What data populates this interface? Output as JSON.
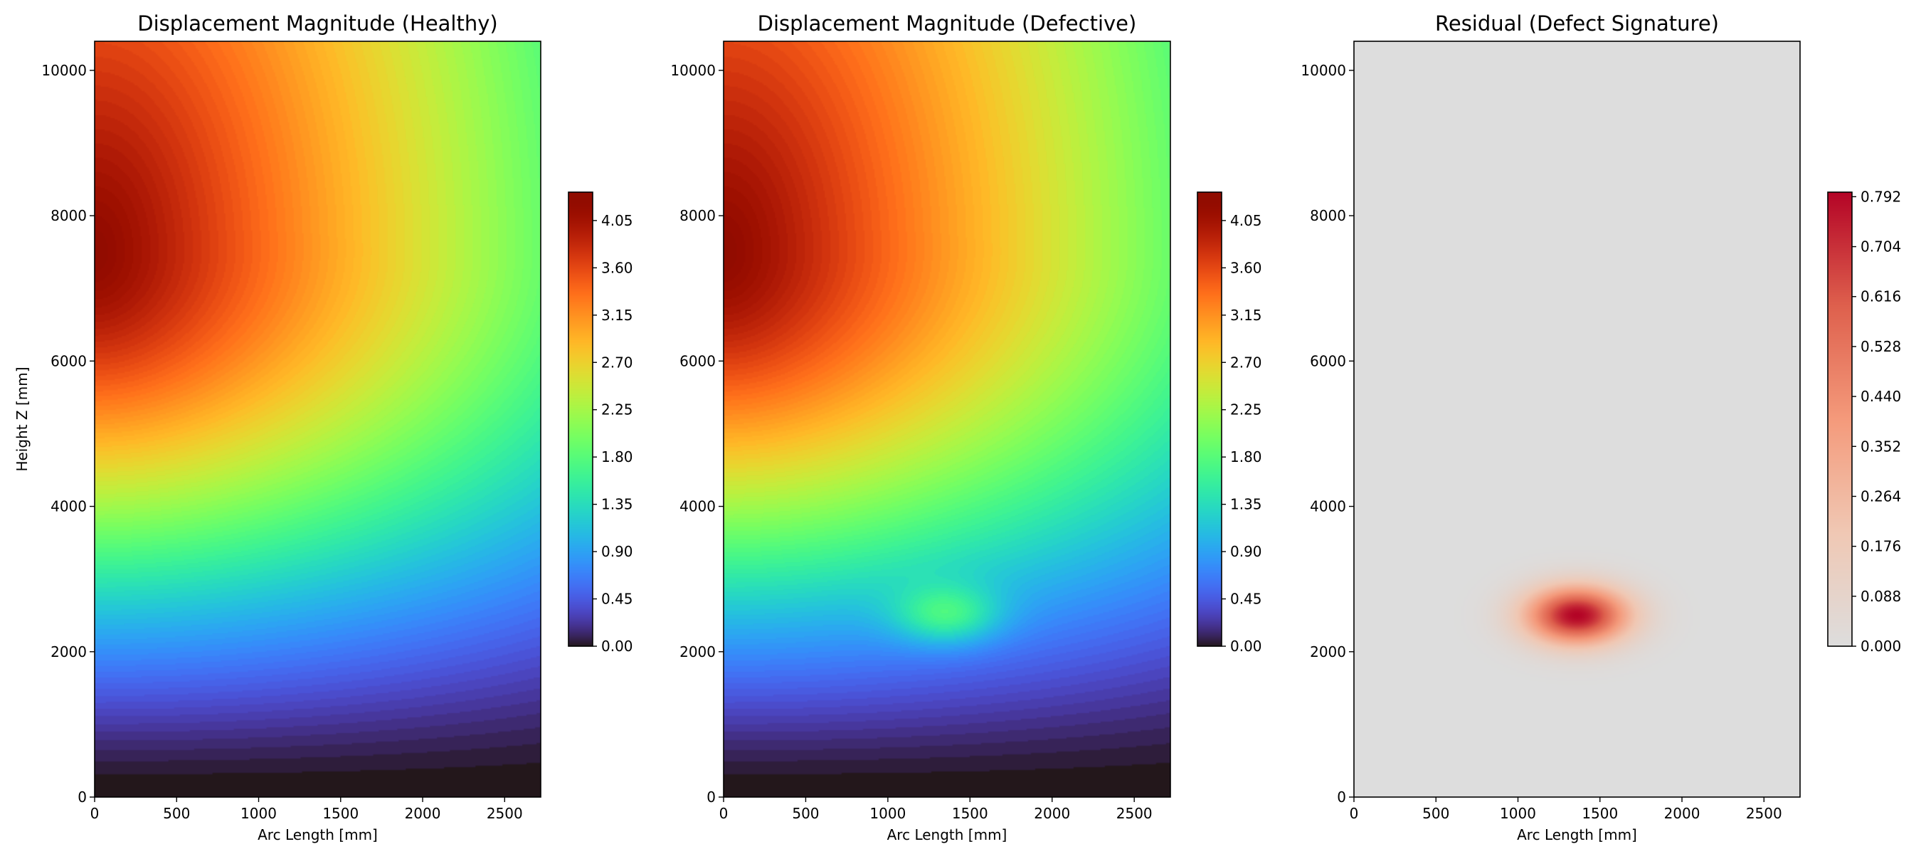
{
  "figure": {
    "background": "#ffffff"
  },
  "chart_data": [
    {
      "type": "heatmap",
      "title": "Displacement Magnitude (Healthy)",
      "xlabel": "Arc Length [mm]",
      "ylabel": "Height Z [mm]",
      "xlim": [
        0,
        2720
      ],
      "ylim": [
        0,
        10400
      ],
      "xticks": [
        0,
        500,
        1000,
        1500,
        2000,
        2500
      ],
      "yticks": [
        0,
        2000,
        4000,
        6000,
        8000,
        10000
      ],
      "colormap": "turbo",
      "field": {
        "peak_value": 4.3,
        "peak_location": [
          0,
          7500
        ],
        "value_at_top_right": 2.1,
        "value_at_bottom": 0.0,
        "defect": null
      },
      "colorbar": {
        "range": [
          0,
          4.32
        ],
        "ticks": [
          "0.00",
          "0.45",
          "0.90",
          "1.35",
          "1.80",
          "2.25",
          "2.70",
          "3.15",
          "3.60",
          "4.05"
        ]
      }
    },
    {
      "type": "heatmap",
      "title": "Displacement Magnitude (Defective)",
      "xlabel": "Arc Length [mm]",
      "ylabel": "",
      "xlim": [
        0,
        2720
      ],
      "ylim": [
        0,
        10400
      ],
      "xticks": [
        0,
        500,
        1000,
        1500,
        2000,
        2500
      ],
      "yticks": [
        0,
        2000,
        4000,
        6000,
        8000,
        10000
      ],
      "colormap": "turbo",
      "field": {
        "peak_value": 4.3,
        "peak_location": [
          0,
          7500
        ],
        "value_at_top_right": 2.1,
        "value_at_bottom": 0.0,
        "defect": {
          "center": [
            1360,
            2500
          ],
          "amplitude": 0.8,
          "sigma_x": 220,
          "sigma_z": 280
        }
      },
      "colorbar": {
        "range": [
          0,
          4.32
        ],
        "ticks": [
          "0.00",
          "0.45",
          "0.90",
          "1.35",
          "1.80",
          "2.25",
          "2.70",
          "3.15",
          "3.60",
          "4.05"
        ]
      }
    },
    {
      "type": "heatmap",
      "title": "Residual (Defect Signature)",
      "xlabel": "Arc Length [mm]",
      "ylabel": "",
      "xlim": [
        0,
        2720
      ],
      "ylim": [
        0,
        10400
      ],
      "xticks": [
        0,
        500,
        1000,
        1500,
        2000,
        2500
      ],
      "yticks": [
        0,
        2000,
        4000,
        6000,
        8000,
        10000
      ],
      "colormap": "coolwarm-upper",
      "field": {
        "peak_value": 0.8,
        "peak_location": [
          1360,
          2500
        ],
        "defect": {
          "center": [
            1360,
            2500
          ],
          "amplitude": 0.8,
          "sigma_x": 220,
          "sigma_z": 280
        }
      },
      "colorbar": {
        "range": [
          0,
          0.8
        ],
        "ticks": [
          "0.000",
          "0.088",
          "0.176",
          "0.264",
          "0.352",
          "0.440",
          "0.528",
          "0.616",
          "0.704",
          "0.792"
        ]
      }
    }
  ]
}
